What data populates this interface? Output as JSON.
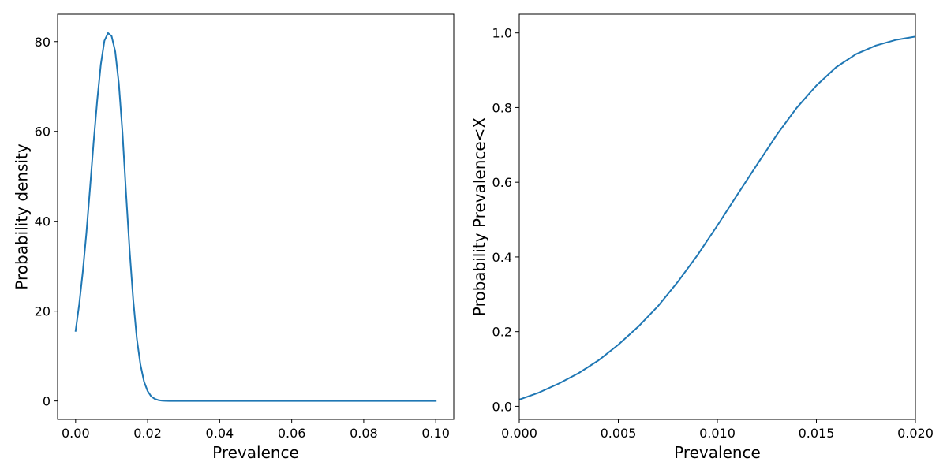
{
  "chart_data": [
    {
      "type": "line",
      "title": "",
      "xlabel": "Prevalence",
      "ylabel": "Probability density",
      "xlim": [
        -0.005,
        0.105
      ],
      "ylim": [
        -4.1,
        86.1
      ],
      "xticks": [
        0.0,
        0.02,
        0.04,
        0.06,
        0.08,
        0.1
      ],
      "xtick_labels": [
        "0.00",
        "0.02",
        "0.04",
        "0.06",
        "0.08",
        "0.10"
      ],
      "yticks": [
        0,
        20,
        40,
        60,
        80
      ],
      "ytick_labels": [
        "0",
        "20",
        "40",
        "60",
        "80"
      ],
      "grid": false,
      "color": "#1f77b4",
      "series": [
        {
          "x": [
            0.0,
            0.001,
            0.002,
            0.003,
            0.004,
            0.005,
            0.006,
            0.007,
            0.008,
            0.009,
            0.01,
            0.011,
            0.012,
            0.013,
            0.014,
            0.015,
            0.016,
            0.017,
            0.018,
            0.019,
            0.02,
            0.021,
            0.022,
            0.023,
            0.024,
            0.025,
            0.026,
            0.027,
            0.028,
            0.03,
            0.035,
            0.04,
            0.05,
            0.06,
            0.07,
            0.08,
            0.09,
            0.1
          ],
          "y": [
            15.6,
            21.5,
            28.8,
            37.4,
            47.3,
            57.6,
            66.9,
            74.9,
            80.2,
            81.9,
            81.2,
            77.8,
            70.7,
            59.9,
            46.3,
            33.5,
            22.5,
            13.9,
            8.1,
            4.3,
            2.2,
            1.0,
            0.45,
            0.18,
            0.07,
            0.02,
            0.01,
            0.0,
            0.0,
            0.0,
            0.0,
            0.0,
            0.0,
            0.0,
            0.0,
            0.0,
            0.0,
            0.0
          ]
        }
      ]
    },
    {
      "type": "line",
      "title": "",
      "xlabel": "Prevalence",
      "ylabel": "Probability Prevalence<X",
      "xlim": [
        0.0,
        0.02
      ],
      "ylim": [
        -0.035,
        1.05
      ],
      "xticks": [
        0.0,
        0.005,
        0.01,
        0.015,
        0.02
      ],
      "xtick_labels": [
        "0.000",
        "0.005",
        "0.010",
        "0.015",
        "0.020"
      ],
      "yticks": [
        0.0,
        0.2,
        0.4,
        0.6,
        0.8,
        1.0
      ],
      "ytick_labels": [
        "0.0",
        "0.2",
        "0.4",
        "0.6",
        "0.8",
        "1.0"
      ],
      "grid": false,
      "color": "#1f77b4",
      "series": [
        {
          "x": [
            0.0,
            0.001,
            0.002,
            0.003,
            0.004,
            0.005,
            0.006,
            0.007,
            0.008,
            0.009,
            0.01,
            0.011,
            0.012,
            0.013,
            0.014,
            0.015,
            0.016,
            0.017,
            0.018,
            0.019,
            0.02
          ],
          "y": [
            0.018,
            0.037,
            0.061,
            0.089,
            0.123,
            0.165,
            0.213,
            0.268,
            0.333,
            0.405,
            0.484,
            0.566,
            0.647,
            0.727,
            0.799,
            0.859,
            0.908,
            0.943,
            0.966,
            0.981,
            0.99
          ]
        }
      ]
    }
  ]
}
